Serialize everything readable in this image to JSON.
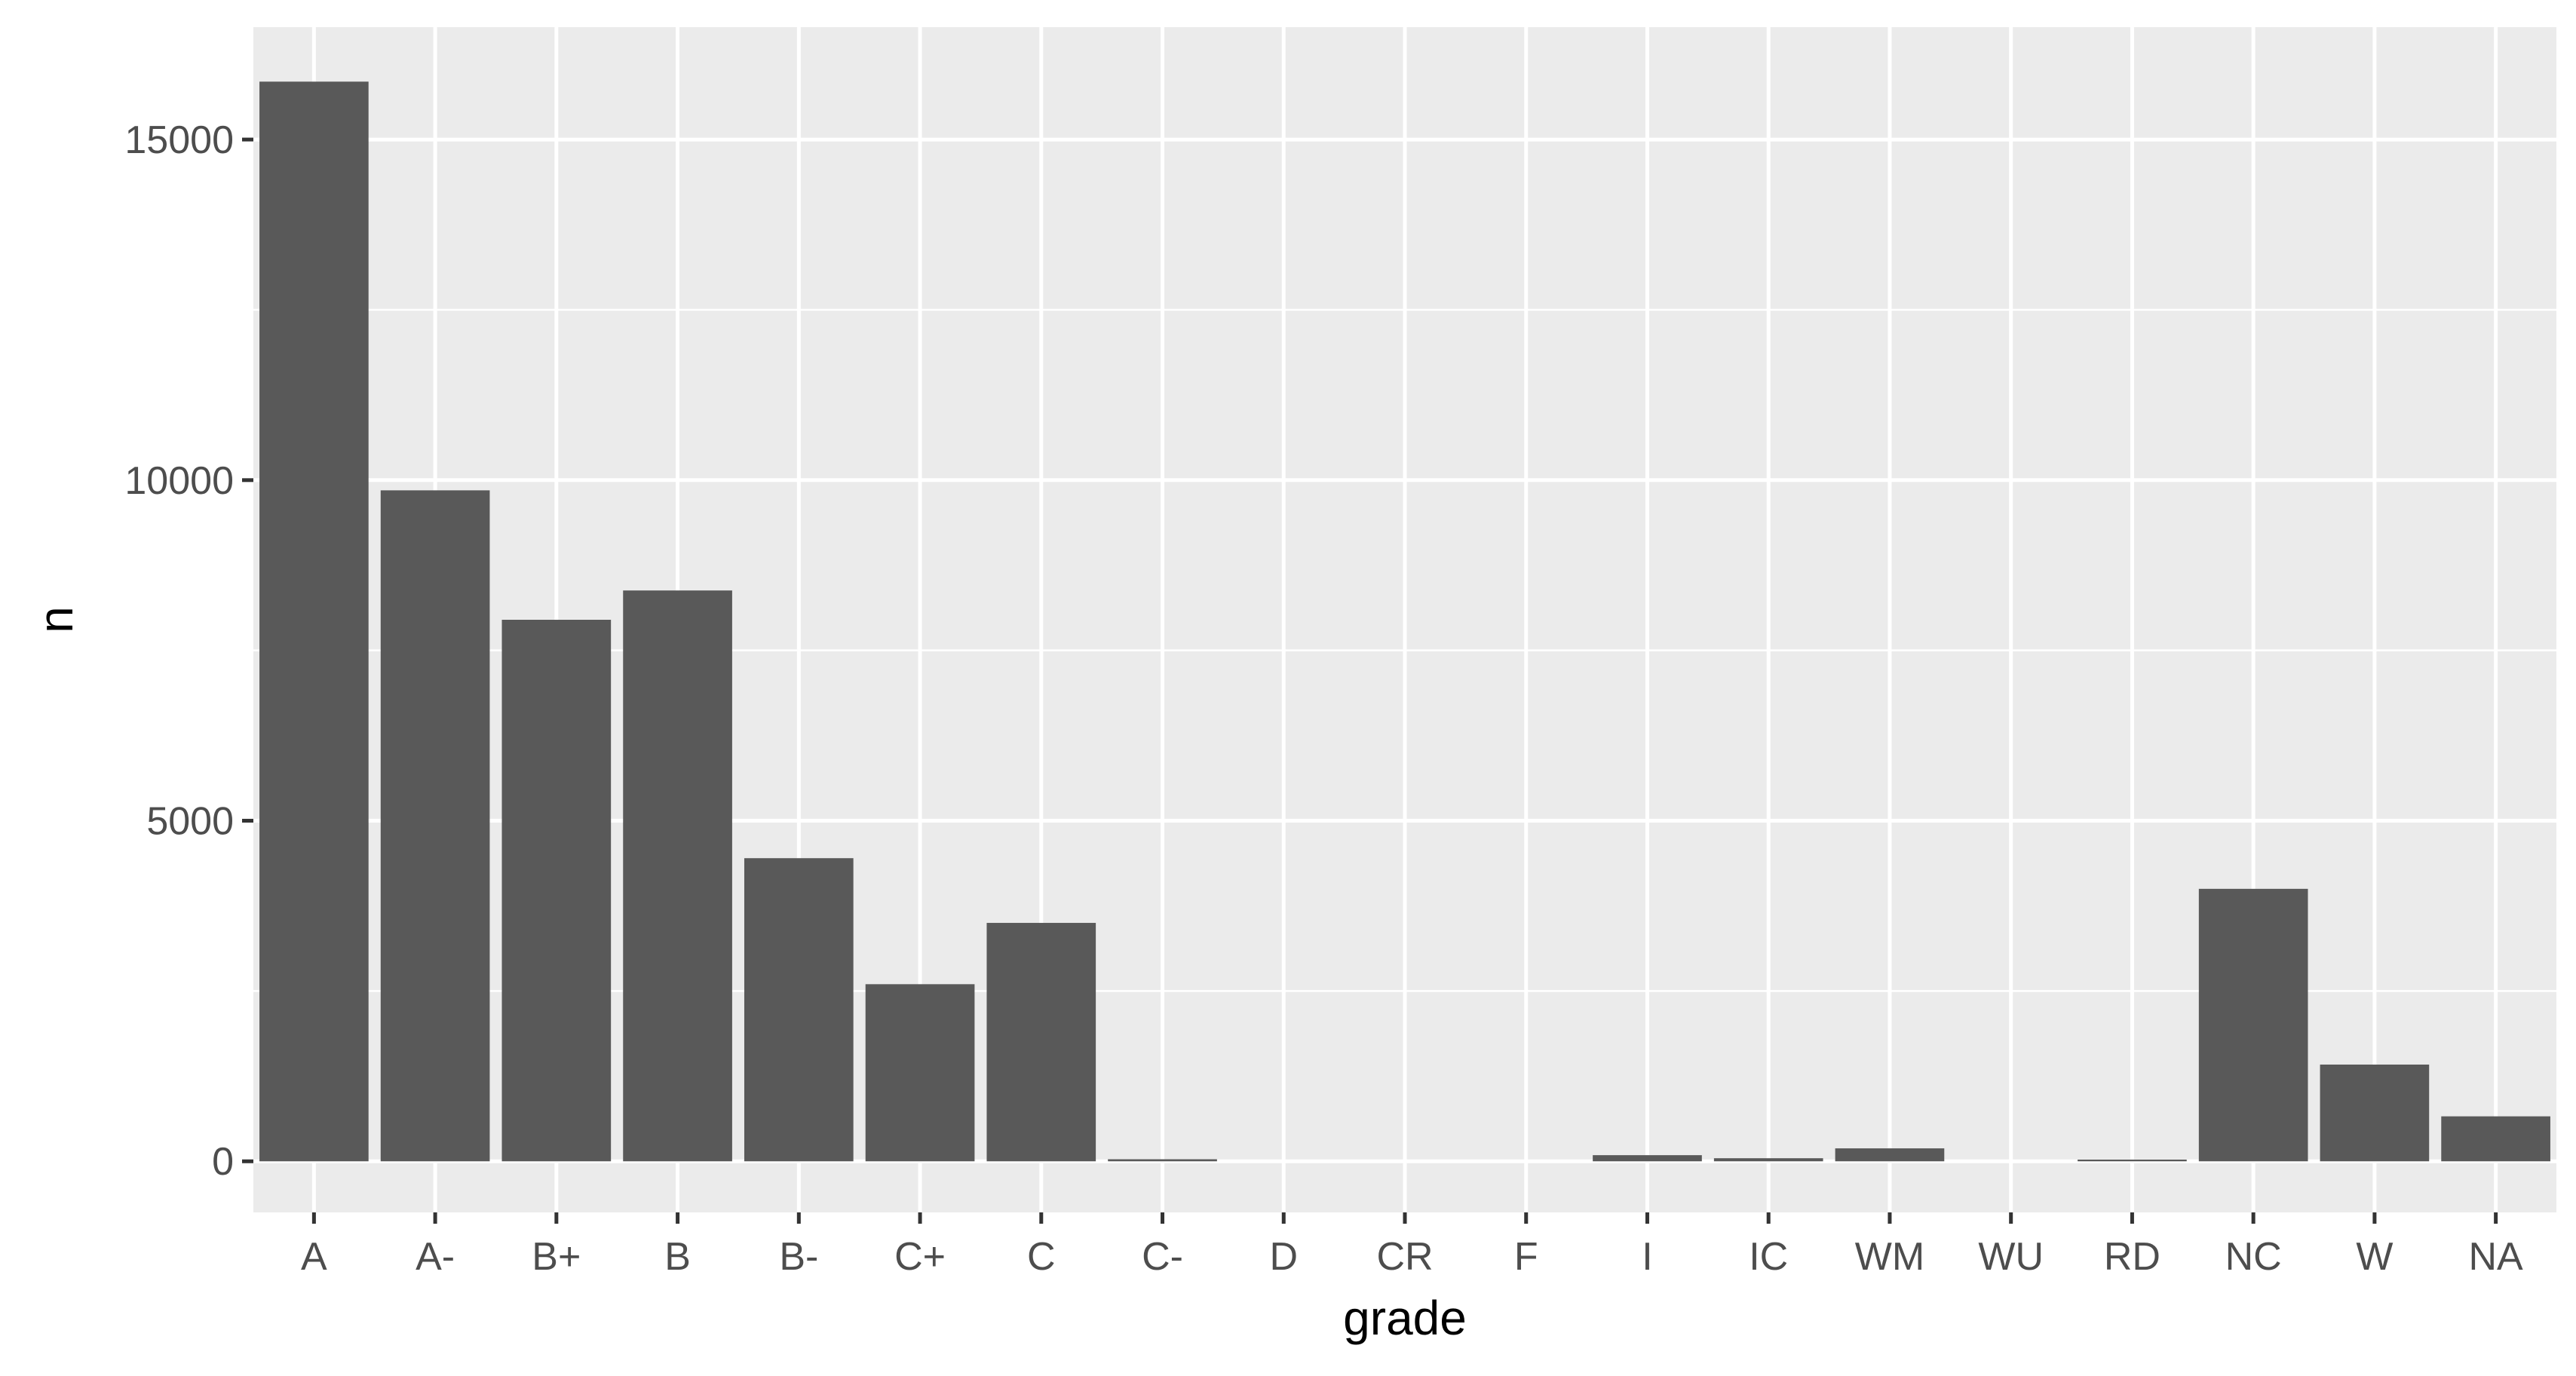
{
  "chart_data": {
    "type": "bar",
    "title": "",
    "xlabel": "grade",
    "ylabel": "n",
    "categories": [
      "A",
      "A-",
      "B+",
      "B",
      "B-",
      "C+",
      "C",
      "C-",
      "D",
      "CR",
      "F",
      "I",
      "IC",
      "WM",
      "WU",
      "RD",
      "NC",
      "W",
      "NA"
    ],
    "values": [
      15850,
      9850,
      7950,
      8380,
      4450,
      2600,
      3500,
      30,
      0,
      0,
      0,
      90,
      45,
      190,
      0,
      25,
      4000,
      1420,
      660
    ],
    "yticks": [
      0,
      5000,
      10000,
      15000
    ],
    "ylim": [
      -750,
      16650
    ],
    "grid": true,
    "legend": "none",
    "colors": {
      "panel": "#ebebeb",
      "grid": "#ffffff",
      "bar": "#595959",
      "tick_text": "#4d4d4d",
      "tick_mark": "#333333",
      "title_text": "#000000"
    }
  }
}
